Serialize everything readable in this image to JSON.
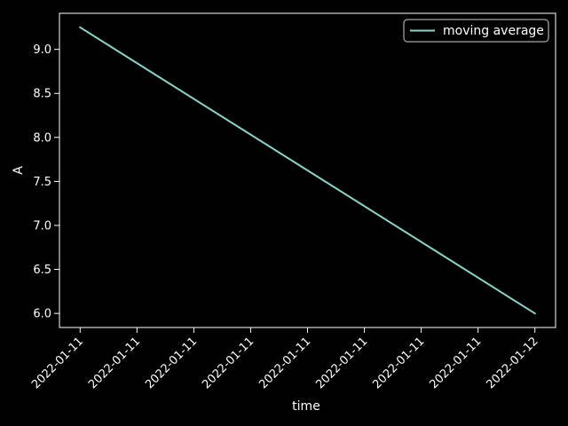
{
  "chart_data": {
    "type": "line",
    "title": "",
    "xlabel": "time",
    "ylabel": "A",
    "x_ticks": [
      "2022-01-11",
      "2022-01-11",
      "2022-01-11",
      "2022-01-11",
      "2022-01-11",
      "2022-01-11",
      "2022-01-11",
      "2022-01-11",
      "2022-01-12"
    ],
    "y_ticks": [
      6.0,
      6.5,
      7.0,
      7.5,
      8.0,
      8.5,
      9.0
    ],
    "x_range": [
      "2022-01-11T18:07:30",
      "2022-01-12T00:07:30"
    ],
    "ylim": [
      5.84,
      9.41
    ],
    "grid": false,
    "legend_position": "top-right",
    "series": [
      {
        "name": "moving average",
        "color": "#8dd3c7",
        "points": [
          {
            "x": "2022-01-11T18:22:30",
            "y": 9.25
          },
          {
            "x": "2022-01-11T23:52:30",
            "y": 6.0
          }
        ]
      }
    ]
  }
}
